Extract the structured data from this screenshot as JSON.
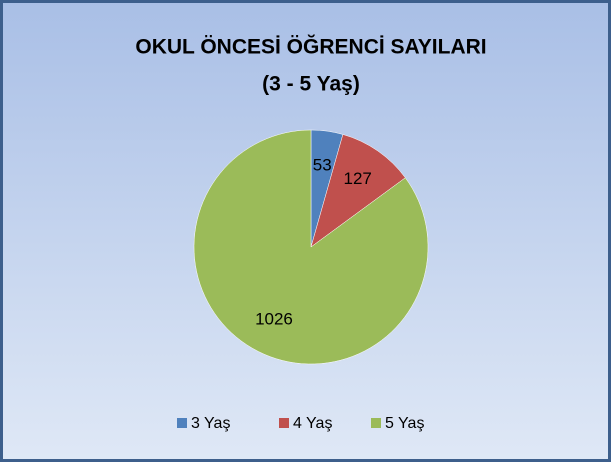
{
  "chart_data": {
    "type": "pie",
    "title": "OKUL ÖNCESİ ÖĞRENCİ SAYILARI",
    "subtitle": "(3 - 5 Yaş)",
    "categories": [
      "3 Yaş",
      "4 Yaş",
      "5 Yaş"
    ],
    "values": [
      53,
      127,
      1026
    ],
    "colors": [
      "#4f81bd",
      "#c0504d",
      "#9bbb59"
    ],
    "legend": "bottom"
  }
}
